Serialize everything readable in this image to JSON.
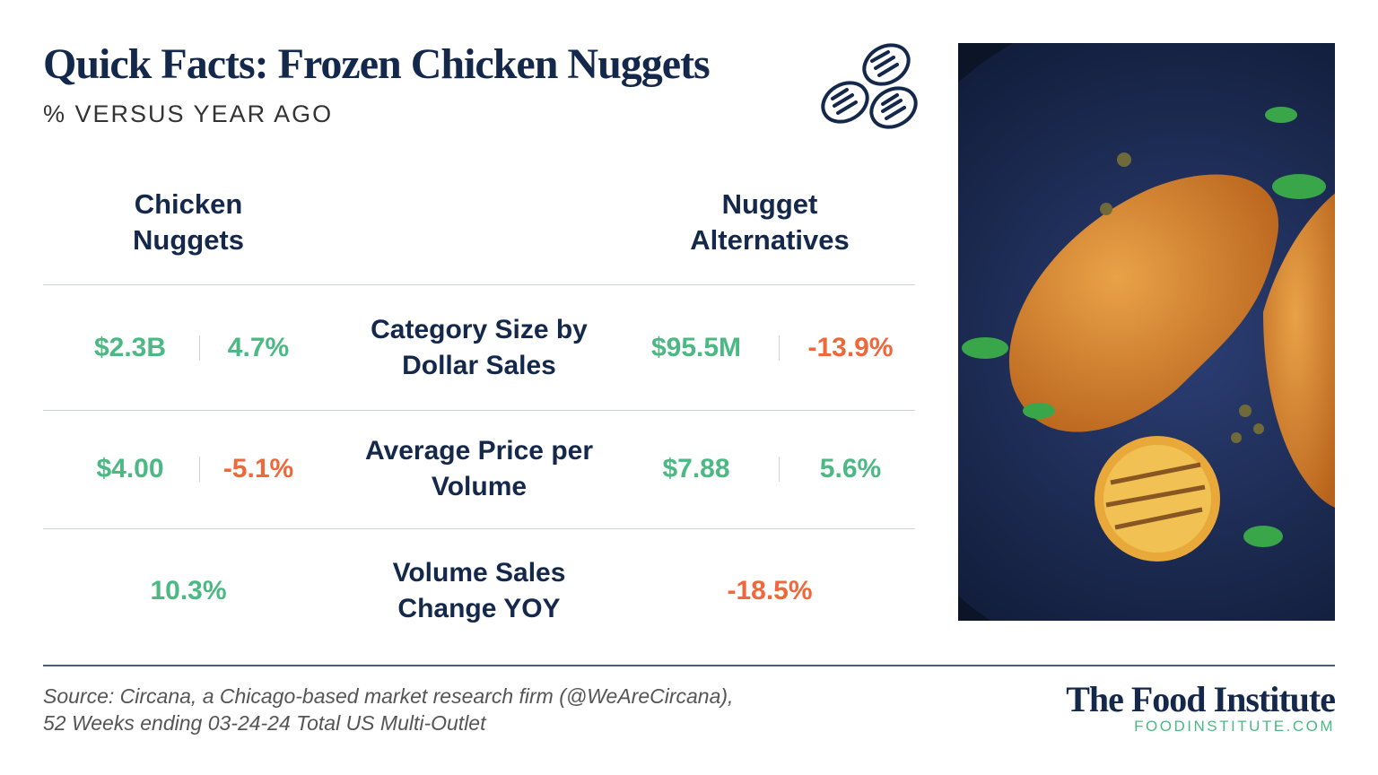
{
  "header": {
    "title": "Quick Facts: Frozen Chicken Nuggets",
    "subtitle": "% VERSUS YEAR AGO"
  },
  "table": {
    "columns": [
      "Chicken Nuggets",
      "Nugget Alternatives"
    ],
    "rows": [
      {
        "label": "Category Size by Dollar Sales",
        "left": [
          "$2.3B",
          "4.7%"
        ],
        "right": [
          "$95.5M",
          "-13.9%"
        ]
      },
      {
        "label": "Average Price per Volume",
        "left": [
          "$4.00",
          "-5.1%"
        ],
        "right": [
          "$7.88",
          "5.6%"
        ]
      },
      {
        "label": "Volume Sales Change YOY",
        "left": [
          "10.3%"
        ],
        "right": [
          "-18.5%"
        ]
      }
    ]
  },
  "footer": {
    "source": [
      "Source: Circana, a Chicago-based market research firm (@WeAreCircana),",
      "52 Weeks ending 03-24-24 Total US Multi-Outlet"
    ],
    "brand": "The Food Institute",
    "url": "FOODINSTITUTE.COM"
  }
}
